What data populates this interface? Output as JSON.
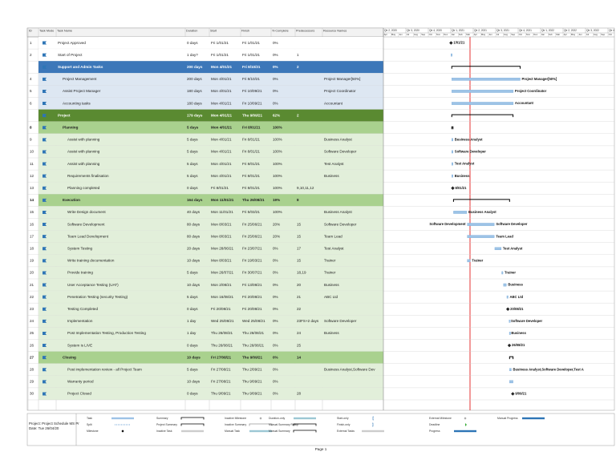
{
  "columns": [
    "ID",
    "Task Mode",
    "Task Name",
    "Duration",
    "Start",
    "Finish",
    "% Complete",
    "Predecessors",
    "Resource Names"
  ],
  "tasks": [
    {
      "id": "1",
      "name": "Project Approved",
      "duration": "0 days",
      "start": "Fri 1/01/21",
      "finish": "Fri 1/01/21",
      "complete": "0%",
      "gantt_label": "1/01/21"
    },
    {
      "id": "2",
      "name": "Start of Project",
      "duration": "1 day?",
      "start": "Fri 1/01/21",
      "finish": "Fri 1/01/21",
      "complete": "0%",
      "predecessors": "1"
    },
    {
      "id": "3",
      "name": "Support and Admin Tasks",
      "duration": "200 days",
      "start": "Mon 4/01/21",
      "finish": "Fri 8/10/21",
      "complete": "0%",
      "predecessors": "2"
    },
    {
      "id": "4",
      "name": "Project Management",
      "duration": "200 days",
      "start": "Mon 4/01/21",
      "finish": "Fri 8/10/21",
      "complete": "0%",
      "resources": "Project Manager[50%]",
      "gantt_label": "Project Manager[50%]"
    },
    {
      "id": "5",
      "name": "Assist Project Manager",
      "duration": "180 days",
      "start": "Mon 4/01/21",
      "finish": "Fri 10/09/21",
      "complete": "0%",
      "resources": "Project Coordinator",
      "gantt_label": "Project Coordinator"
    },
    {
      "id": "6",
      "name": "Accounting tasks",
      "duration": "180 days",
      "start": "Mon 4/01/21",
      "finish": "Fri 10/09/21",
      "complete": "0%",
      "resources": "Accountant",
      "gantt_label": "Accountant"
    },
    {
      "id": "7",
      "name": "Project",
      "duration": "179 days",
      "start": "Mon 4/01/21",
      "finish": "Thu 9/09/21",
      "complete": "62%",
      "predecessors": "2"
    },
    {
      "id": "8",
      "name": "Planning",
      "duration": "5 days",
      "start": "Mon 4/01/21",
      "finish": "Fri 8/01/21",
      "complete": "100%"
    },
    {
      "id": "9",
      "name": "Assist with planning",
      "duration": "5 days",
      "start": "Mon 4/01/21",
      "finish": "Fri 8/01/21",
      "complete": "100%",
      "resources": "Business Analyst",
      "gantt_label": "Business Analyst"
    },
    {
      "id": "10",
      "name": "Assist with planning",
      "duration": "5 days",
      "start": "Mon 4/01/21",
      "finish": "Fri 8/01/21",
      "complete": "100%",
      "resources": "Software Developer",
      "gantt_label": "Software Developer"
    },
    {
      "id": "11",
      "name": "Assist with planning",
      "duration": "5 days",
      "start": "Mon 4/01/21",
      "finish": "Fri 8/01/21",
      "complete": "100%",
      "resources": "Test Analyst",
      "gantt_label": "Test Analyst"
    },
    {
      "id": "12",
      "name": "Requirements finalisation",
      "duration": "5 days",
      "start": "Mon 4/01/21",
      "finish": "Fri 8/01/21",
      "complete": "100%",
      "resources": "Business",
      "gantt_label": "Business"
    },
    {
      "id": "13",
      "name": "Planning completed",
      "duration": "0 days",
      "start": "Fri 8/01/21",
      "finish": "Fri 8/01/21",
      "complete": "100%",
      "predecessors": "9,10,11,12",
      "gantt_label": "8/01/21"
    },
    {
      "id": "14",
      "name": "Execution",
      "duration": "164 days",
      "start": "Mon 11/01/21",
      "finish": "Thu 26/08/21",
      "complete": "19%",
      "predecessors": "8"
    },
    {
      "id": "15",
      "name": "Write Design document",
      "duration": "40 days",
      "start": "Mon 11/01/21",
      "finish": "Fri 5/03/21",
      "complete": "100%",
      "resources": "Business Analyst",
      "gantt_label": "Business Analyst"
    },
    {
      "id": "16",
      "name": "Software Development",
      "duration": "80 days",
      "start": "Mon 8/03/21",
      "finish": "Fri 25/06/21",
      "complete": "20%",
      "predecessors": "15",
      "resources": "Software Developer",
      "gantt_left_label": "Software Development",
      "gantt_label": "Software Developer"
    },
    {
      "id": "17",
      "name": "Team Lead Development",
      "duration": "80 days",
      "start": "Mon 8/03/21",
      "finish": "Fri 25/06/21",
      "complete": "20%",
      "predecessors": "15",
      "resources": "Team Lead",
      "gantt_label": "Team Lead"
    },
    {
      "id": "18",
      "name": "System Testing",
      "duration": "20 days",
      "start": "Mon 28/06/21",
      "finish": "Fri 23/07/21",
      "complete": "0%",
      "predecessors": "17",
      "resources": "Test Analyst",
      "gantt_label": "Test Analyst"
    },
    {
      "id": "19",
      "name": "Write training documentation",
      "duration": "10 days",
      "start": "Mon 8/03/21",
      "finish": "Fri 19/03/21",
      "complete": "0%",
      "predecessors": "15",
      "resources": "Trainer",
      "gantt_label": "Trainer"
    },
    {
      "id": "20",
      "name": "Provide training",
      "duration": "5 days",
      "start": "Mon 26/07/21",
      "finish": "Fri 30/07/21",
      "complete": "0%",
      "predecessors": "18,19",
      "resources": "Trainer",
      "gantt_label": "Trainer"
    },
    {
      "id": "21",
      "name": "User Acceptance Testing (UAT)",
      "duration": "10 days",
      "start": "Mon 2/08/21",
      "finish": "Fri 13/08/21",
      "complete": "0%",
      "predecessors": "20",
      "resources": "Business",
      "gantt_label": "Business"
    },
    {
      "id": "22",
      "name": "Penetration Testing (security Testing)",
      "duration": "5 days",
      "start": "Mon 16/08/21",
      "finish": "Fri 20/08/21",
      "complete": "0%",
      "predecessors": "21",
      "resources": "ABC Ltd",
      "gantt_label": "ABC Ltd"
    },
    {
      "id": "23",
      "name": "Testing Completed",
      "duration": "0 days",
      "start": "Fri 20/08/21",
      "finish": "Fri 20/08/21",
      "complete": "0%",
      "predecessors": "22",
      "gantt_label": "20/08/21"
    },
    {
      "id": "24",
      "name": "Implementation",
      "duration": "1 day",
      "start": "Wed 25/08/21",
      "finish": "Wed 25/08/21",
      "complete": "0%",
      "predecessors": "23FS+2 days",
      "resources": "Software Developer",
      "gantt_label": "Software Developer"
    },
    {
      "id": "25",
      "name": "Post Implementation Testing, Production Testing",
      "duration": "1 day",
      "start": "Thu 26/08/21",
      "finish": "Thu 26/08/21",
      "complete": "0%",
      "predecessors": "24",
      "resources": "Business",
      "gantt_label": "Business"
    },
    {
      "id": "26",
      "name": "System is LIVE",
      "duration": "0 days",
      "start": "Thu 26/08/21",
      "finish": "Thu 26/08/21",
      "complete": "0%",
      "predecessors": "25",
      "gantt_label": "26/08/21"
    },
    {
      "id": "27",
      "name": "Closing",
      "duration": "10 days",
      "start": "Fri 27/08/21",
      "finish": "Thu 9/09/21",
      "complete": "0%",
      "predecessors": "14"
    },
    {
      "id": "28",
      "name": "Post implementation review - all Project Team",
      "duration": "5 days",
      "start": "Fri 27/08/21",
      "finish": "Thu 2/09/21",
      "complete": "0%",
      "resources": "Business Analyst,Software Dev",
      "gantt_label": "Business Analyst,Software Developer,Test A"
    },
    {
      "id": "29",
      "name": "Warranty period",
      "duration": "10 days",
      "start": "Fri 27/08/21",
      "finish": "Thu 9/09/21",
      "complete": "0%"
    },
    {
      "id": "30",
      "name": "Project Closed",
      "duration": "0 days",
      "start": "Thu 9/09/21",
      "finish": "Thu 9/09/21",
      "complete": "0%",
      "predecessors": "28",
      "gantt_label": "9/09/21"
    }
  ],
  "timescale": {
    "quarters": [
      "Qtr 2, 2020",
      "Qtr 3, 2020",
      "Qtr 4, 2020",
      "Qtr 1, 2021",
      "Qtr 2, 2021",
      "Qtr 3, 2021",
      "Qtr 4, 2021",
      "Qtr 1, 2022",
      "Qtr 2, 2022",
      "Qtr 3, 2022",
      "Qtr 4, 2022"
    ],
    "months": [
      "Apr",
      "May",
      "Jun",
      "Jul",
      "Aug",
      "Sep",
      "Oct",
      "Nov",
      "Dec",
      "Jan",
      "Feb",
      "Mar",
      "Apr",
      "May",
      "Jun",
      "Jul",
      "Aug",
      "Sep",
      "Oct",
      "Nov",
      "Dec",
      "Jan",
      "Feb",
      "Mar",
      "Apr",
      "May",
      "Jun",
      "Jul",
      "Aug",
      "Sep",
      "Oct",
      "Nov",
      "Dec"
    ]
  },
  "legend": [
    "Task",
    "Split",
    "Milestone",
    "Summary",
    "Project Summary",
    "Inactive Task",
    "Inactive Milestone",
    "Inactive Summary",
    "Manual Task",
    "Duration-only",
    "Manual Summary Rollup",
    "Manual Summary",
    "Start-only",
    "Finish-only",
    "External Tasks",
    "External Milestone",
    "Deadline",
    "Progress",
    "Manual Progress"
  ],
  "footer": {
    "project": "Project: Project Schedule MS Pr",
    "date": "Date: Tue 26/04/20",
    "page": "Page 1"
  }
}
